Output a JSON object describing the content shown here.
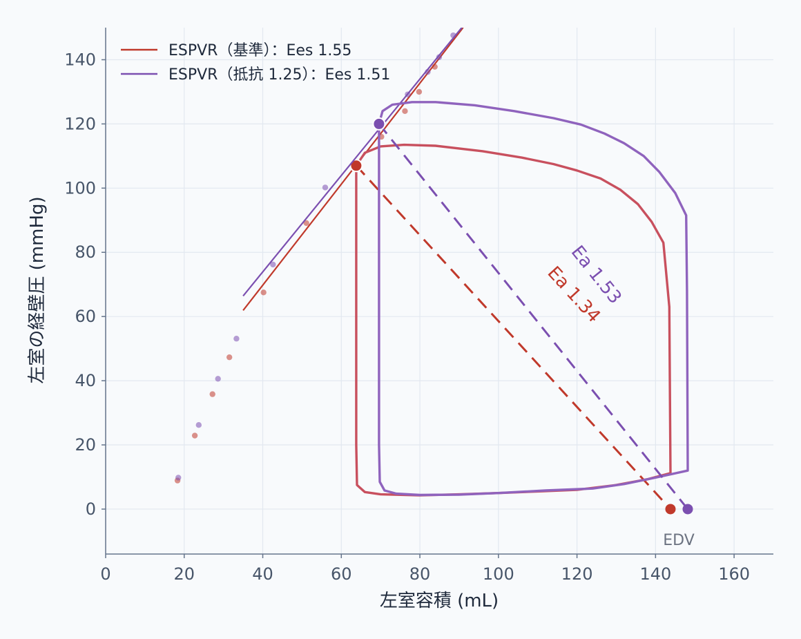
{
  "chart_data": {
    "type": "line",
    "xlabel": "左室容積 (mL)",
    "ylabel": "左室の経壁圧 (mmHg)",
    "xlim": [
      0,
      170
    ],
    "ylim": [
      -14,
      150
    ],
    "xticks": [
      "0",
      "20",
      "40",
      "60",
      "80",
      "100",
      "120",
      "140",
      "160"
    ],
    "yticks": [
      "0",
      "20",
      "40",
      "60",
      "80",
      "100",
      "120",
      "140"
    ],
    "grid": true,
    "legend_position": "top-left",
    "edv_label": "EDV",
    "series": [
      {
        "name": "ESPVR（基準）：Ees 1.55",
        "color": "#c0392b",
        "espvr_line": [
          [
            35,
            61.9
          ],
          [
            91,
            150
          ]
        ],
        "espvr_points": [
          [
            18.3,
            8.9
          ],
          [
            22.7,
            22.9
          ],
          [
            27.2,
            35.8
          ],
          [
            31.5,
            47.3
          ],
          [
            40.2,
            67.5
          ],
          [
            51.1,
            89.1
          ],
          [
            70.2,
            116.0
          ],
          [
            76.2,
            124.0
          ],
          [
            79.8,
            130.0
          ],
          [
            83.8,
            137.8
          ]
        ],
        "es_point": [
          63.8,
          107.0
        ],
        "edv_point": [
          143.8,
          0
        ],
        "ea_label": "Ea 1.34",
        "pv_loop": [
          [
            63.8,
            107.0
          ],
          [
            66.0,
            111.0
          ],
          [
            70.0,
            113.0
          ],
          [
            76.0,
            113.5
          ],
          [
            84.0,
            113.2
          ],
          [
            96.0,
            111.5
          ],
          [
            106.0,
            109.5
          ],
          [
            114.0,
            107.5
          ],
          [
            120.0,
            105.5
          ],
          [
            126.0,
            103.0
          ],
          [
            131.0,
            99.5
          ],
          [
            135.5,
            95.0
          ],
          [
            139.0,
            89.5
          ],
          [
            142.0,
            83.0
          ],
          [
            143.5,
            63.0
          ],
          [
            143.8,
            11.2
          ],
          [
            138.0,
            9.3
          ],
          [
            130.0,
            7.5
          ],
          [
            120.0,
            6.0
          ],
          [
            110.0,
            5.5
          ],
          [
            100.0,
            5.0
          ],
          [
            90.0,
            4.6
          ],
          [
            80.0,
            4.3
          ],
          [
            70.0,
            4.6
          ],
          [
            66.0,
            5.3
          ],
          [
            64.0,
            7.5
          ],
          [
            63.8,
            20.0
          ],
          [
            63.8,
            107.0
          ]
        ]
      },
      {
        "name": "ESPVR（抵抗 1.25）：Ees 1.51",
        "color": "#7b4fb0",
        "espvr_line": [
          [
            35,
            66.4
          ],
          [
            92,
            152
          ]
        ],
        "espvr_points": [
          [
            18.5,
            9.8
          ],
          [
            23.7,
            26.2
          ],
          [
            28.6,
            40.6
          ],
          [
            33.3,
            53.1
          ],
          [
            42.6,
            76.2
          ],
          [
            55.9,
            100.2
          ],
          [
            76.9,
            129.2
          ],
          [
            82.0,
            136.2
          ],
          [
            84.9,
            140.8
          ],
          [
            88.5,
            147.6
          ]
        ],
        "es_point": [
          69.6,
          120.0
        ],
        "edv_point": [
          148.2,
          0
        ],
        "ea_label": "Ea 1.53",
        "pv_loop": [
          [
            69.6,
            120.0
          ],
          [
            70.5,
            124.0
          ],
          [
            73.0,
            126.0
          ],
          [
            78.0,
            126.8
          ],
          [
            84.0,
            126.8
          ],
          [
            94.0,
            125.8
          ],
          [
            104.0,
            124.0
          ],
          [
            114.0,
            121.8
          ],
          [
            121.0,
            119.8
          ],
          [
            127.0,
            117.0
          ],
          [
            132.0,
            114.0
          ],
          [
            137.0,
            110.0
          ],
          [
            141.0,
            105.0
          ],
          [
            145.0,
            98.5
          ],
          [
            147.8,
            91.5
          ],
          [
            148.0,
            68.0
          ],
          [
            148.2,
            12.0
          ],
          [
            140.0,
            9.8
          ],
          [
            132.0,
            7.8
          ],
          [
            124.0,
            6.4
          ],
          [
            112.0,
            5.8
          ],
          [
            100.0,
            5.0
          ],
          [
            90.0,
            4.5
          ],
          [
            80.0,
            4.4
          ],
          [
            74.0,
            4.8
          ],
          [
            71.0,
            5.8
          ],
          [
            69.8,
            8.5
          ],
          [
            69.6,
            20.0
          ],
          [
            69.6,
            120.0
          ]
        ]
      }
    ]
  }
}
